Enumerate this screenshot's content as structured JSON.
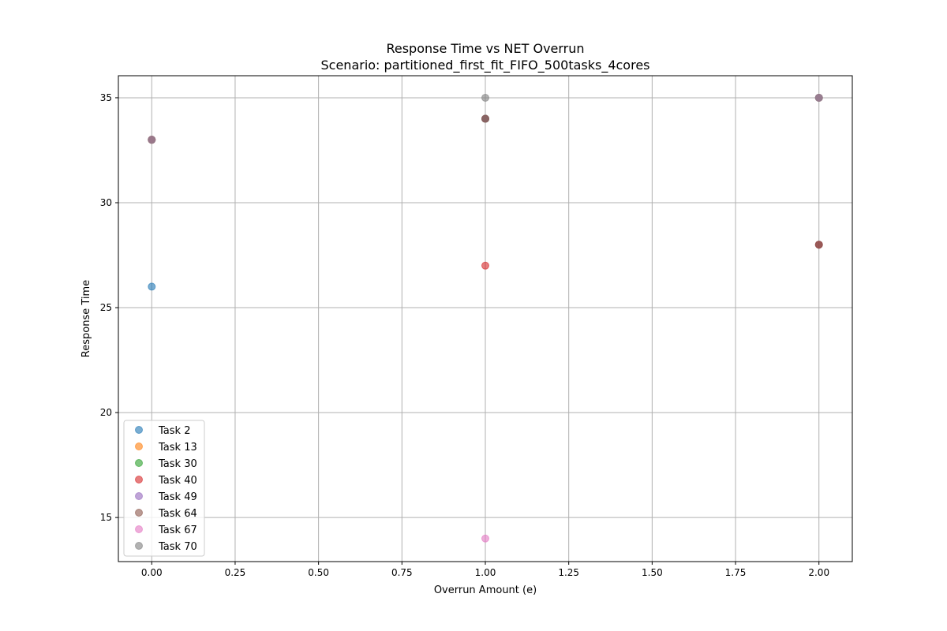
{
  "chart_data": {
    "type": "scatter",
    "title": "Response Time vs NET Overrun",
    "subtitle": "Scenario: partitioned_first_fit_FIFO_500tasks_4cores",
    "xlabel": "Overrun Amount (e)",
    "ylabel": "Response Time",
    "xlim": [
      -0.1,
      2.1
    ],
    "ylim": [
      12.9,
      36.05
    ],
    "xticks": [
      "0.00",
      "0.25",
      "0.50",
      "0.75",
      "1.00",
      "1.25",
      "1.50",
      "1.75",
      "2.00"
    ],
    "xtick_values": [
      0,
      0.25,
      0.5,
      0.75,
      1.0,
      1.25,
      1.5,
      1.75,
      2.0
    ],
    "yticks": [
      "15",
      "20",
      "25",
      "30",
      "35"
    ],
    "ytick_values": [
      15,
      20,
      25,
      30,
      35
    ],
    "grid": true,
    "legend_position": "lower-left",
    "series": [
      {
        "name": "Task 2",
        "color": "#1f77b4",
        "x": [
          0,
          1,
          2
        ],
        "y": [
          26,
          34,
          28
        ]
      },
      {
        "name": "Task 13",
        "color": "#ff7f0e",
        "x": [
          0,
          1,
          2
        ],
        "y": [
          33,
          34,
          35
        ]
      },
      {
        "name": "Task 30",
        "color": "#2ca02c",
        "x": [
          0,
          1,
          2
        ],
        "y": [
          33,
          34,
          35
        ]
      },
      {
        "name": "Task 40",
        "color": "#d62728",
        "x": [
          0,
          1,
          2
        ],
        "y": [
          33,
          27,
          28
        ]
      },
      {
        "name": "Task 49",
        "color": "#9467bd",
        "x": [
          0,
          1,
          2
        ],
        "y": [
          33,
          34,
          35
        ]
      },
      {
        "name": "Task 64",
        "color": "#8c564b",
        "x": [
          0,
          1,
          2
        ],
        "y": [
          33,
          34,
          28
        ]
      },
      {
        "name": "Task 67",
        "color": "#e377c2",
        "x": [
          0,
          1,
          2
        ],
        "y": [
          33,
          14,
          35
        ]
      },
      {
        "name": "Task 70",
        "color": "#7f7f7f",
        "x": [
          0,
          1,
          2
        ],
        "y": [
          33,
          35,
          35
        ]
      }
    ]
  }
}
